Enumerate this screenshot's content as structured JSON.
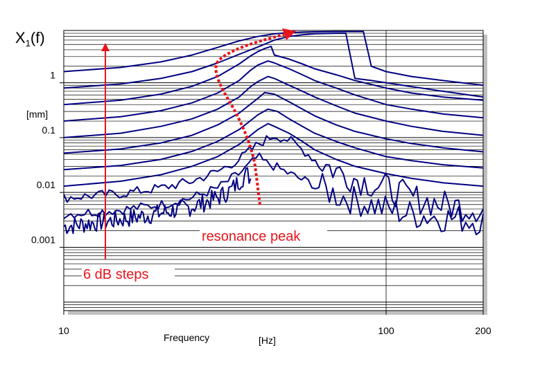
{
  "chart_data": {
    "type": "line",
    "title": "",
    "ylabel": "X1(f)",
    "ylabel_main": "X",
    "ylabel_sub": "1",
    "ylabel_tail": "(f)",
    "yunit": "[mm]",
    "xlabel": "Frequency",
    "xunit": "[Hz]",
    "x_scale": "log",
    "y_scale": "log",
    "xlim": [
      10,
      200
    ],
    "ylim": [
      7e-05,
      9
    ],
    "x_ticks": [
      {
        "value": 10,
        "label": "10"
      },
      {
        "value": 100,
        "label": "100"
      },
      {
        "value": 200,
        "label": "200"
      }
    ],
    "y_ticks": [
      {
        "value": 1,
        "label": "1"
      },
      {
        "value": 0.1,
        "label": "0.1"
      },
      {
        "value": 0.01,
        "label": "0.01"
      },
      {
        "value": 0.001,
        "label": "0.001"
      }
    ],
    "grid": true,
    "series_color": "#000080",
    "annotation_color": "#e8141b",
    "annotations": {
      "resonance": "resonance peak",
      "steps": "6 dB steps"
    },
    "series": [
      {
        "x": [
          10,
          15,
          20,
          25,
          30,
          33,
          35,
          37,
          38
        ],
        "y": [
          0.0024,
          0.0032,
          0.0042,
          0.0055,
          0.008,
          0.011,
          0.016,
          0.022,
          0.018
        ],
        "noisy": true
      },
      {
        "x": [
          10,
          15,
          20,
          25,
          30,
          35,
          38,
          40,
          42,
          45,
          50,
          55,
          60,
          65,
          70,
          75,
          80,
          90,
          100,
          120,
          150,
          200
        ],
        "y": [
          0.004,
          0.0048,
          0.006,
          0.008,
          0.012,
          0.022,
          0.033,
          0.045,
          0.035,
          0.03,
          0.022,
          0.017,
          0.014,
          0.011,
          0.009,
          0.008,
          0.007,
          0.006,
          0.005,
          0.004,
          0.0035,
          0.003
        ],
        "noisy": true
      },
      {
        "x": [
          10,
          15,
          20,
          25,
          30,
          35,
          40,
          45,
          50,
          55,
          60,
          70,
          80,
          100,
          120,
          150,
          200
        ],
        "y": [
          0.008,
          0.0095,
          0.012,
          0.016,
          0.024,
          0.04,
          0.075,
          0.11,
          0.09,
          0.06,
          0.04,
          0.025,
          0.018,
          0.012,
          0.008,
          0.006,
          0.005
        ],
        "noisy": true
      },
      {
        "x": [
          10,
          15,
          20,
          25,
          30,
          35,
          40,
          43,
          45,
          50,
          55,
          60,
          70,
          80,
          100,
          120,
          150,
          200
        ],
        "y": [
          0.013,
          0.016,
          0.021,
          0.03,
          0.045,
          0.075,
          0.14,
          0.18,
          0.16,
          0.12,
          0.085,
          0.06,
          0.04,
          0.03,
          0.022,
          0.018,
          0.015,
          0.013
        ]
      },
      {
        "x": [
          10,
          15,
          20,
          25,
          30,
          35,
          40,
          43,
          46,
          50,
          55,
          60,
          70,
          80,
          100,
          120,
          150,
          200
        ],
        "y": [
          0.026,
          0.031,
          0.04,
          0.056,
          0.085,
          0.14,
          0.26,
          0.33,
          0.3,
          0.22,
          0.16,
          0.12,
          0.085,
          0.065,
          0.045,
          0.038,
          0.032,
          0.028
        ]
      },
      {
        "x": [
          10,
          15,
          20,
          25,
          30,
          35,
          40,
          42,
          45,
          50,
          55,
          60,
          70,
          80,
          100,
          120,
          150,
          200
        ],
        "y": [
          0.052,
          0.062,
          0.08,
          0.11,
          0.17,
          0.28,
          0.52,
          0.66,
          0.62,
          0.45,
          0.33,
          0.25,
          0.17,
          0.13,
          0.095,
          0.078,
          0.065,
          0.055
        ]
      },
      {
        "x": [
          10,
          15,
          20,
          25,
          30,
          35,
          38,
          40,
          43,
          45,
          50,
          55,
          60,
          70,
          80,
          100,
          120,
          150,
          200
        ],
        "y": [
          0.1,
          0.12,
          0.16,
          0.22,
          0.33,
          0.55,
          0.85,
          1.05,
          1.3,
          1.2,
          0.9,
          0.7,
          0.55,
          0.38,
          0.28,
          0.2,
          0.16,
          0.13,
          0.11
        ]
      },
      {
        "x": [
          10,
          15,
          20,
          25,
          30,
          35,
          38,
          40,
          43,
          45,
          50,
          55,
          60,
          70,
          80,
          100,
          120,
          150,
          200
        ],
        "y": [
          0.2,
          0.24,
          0.31,
          0.43,
          0.65,
          1.1,
          1.7,
          2.1,
          2.5,
          2.3,
          1.8,
          1.4,
          1.1,
          0.8,
          0.6,
          0.4,
          0.33,
          0.27,
          0.23
        ]
      },
      {
        "x": [
          10,
          15,
          20,
          25,
          30,
          35,
          38,
          40,
          42,
          44,
          45,
          50,
          55,
          60,
          70,
          80,
          100,
          120,
          150,
          200
        ],
        "y": [
          0.4,
          0.48,
          0.62,
          0.86,
          1.3,
          2.2,
          3.1,
          3.7,
          4.2,
          4.6,
          3.2,
          2.7,
          2.2,
          1.8,
          1.4,
          1.1,
          0.8,
          0.65,
          0.55,
          0.48
        ]
      },
      {
        "x": [
          10,
          15,
          20,
          25,
          30,
          35,
          40,
          45,
          50,
          55,
          60,
          70,
          75,
          80,
          90,
          100,
          120,
          150,
          200
        ],
        "y": [
          0.8,
          0.95,
          1.2,
          1.6,
          2.3,
          3.3,
          4.5,
          6.0,
          7.0,
          7.5,
          7.8,
          8.0,
          8.0,
          1.2,
          1.1,
          1.0,
          0.85,
          0.7,
          0.55
        ]
      },
      {
        "x": [
          10,
          15,
          20,
          25,
          30,
          35,
          40,
          45,
          50,
          55,
          60,
          70,
          80,
          85,
          90,
          100,
          120,
          150,
          200
        ],
        "y": [
          1.6,
          1.9,
          2.4,
          3.2,
          4.4,
          5.8,
          7.0,
          7.8,
          8.2,
          8.4,
          8.5,
          8.6,
          8.6,
          8.6,
          2.0,
          1.6,
          1.3,
          1.1,
          0.9
        ]
      }
    ]
  }
}
